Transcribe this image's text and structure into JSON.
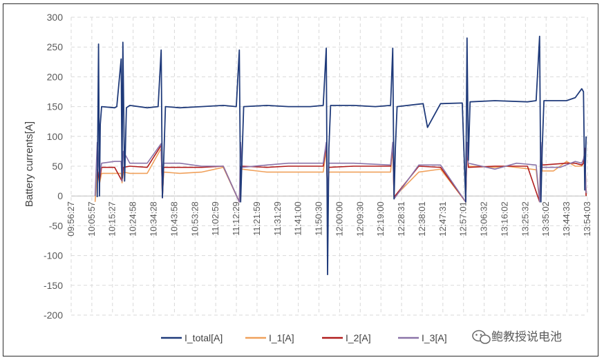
{
  "chart_data": {
    "type": "line",
    "title": "",
    "ylabel": "Battery currents[A]",
    "xlabel": "",
    "ylim": [
      -200,
      300
    ],
    "yticks": [
      300,
      250,
      200,
      150,
      100,
      50,
      0,
      -50,
      -100,
      -150,
      -200
    ],
    "xticks": [
      "09:56:27",
      "10:05:57",
      "10:15:27",
      "10:24:58",
      "10:34:28",
      "10:43:58",
      "10:53:28",
      "11:02:59",
      "11:12:29",
      "11:21:59",
      "11:31:29",
      "11:41:00",
      "11:50:30",
      "12:00:00",
      "12:09:30",
      "12:19:00",
      "12:28:31",
      "12:38:01",
      "12:47:31",
      "12:57:01",
      "13:06:32",
      "13:16:02",
      "13:25:32",
      "13:35:02",
      "13:44:33",
      "13:54:03"
    ],
    "x_unit": "minutes after 09:56:27",
    "xlim": [
      0,
      237.6
    ],
    "grid": true,
    "legend_position": "bottom",
    "series": [
      {
        "name": "I_total[A]",
        "color": "#1f3a7a",
        "x": [
          12,
          12.6,
          13.0,
          13.4,
          14.0,
          20,
          21,
          23,
          23.4,
          23.8,
          24.6,
          25.4,
          27,
          35,
          40,
          41.4,
          42.0,
          42.6,
          43.4,
          50,
          60,
          70,
          76,
          77.4,
          78.0,
          78.6,
          79.4,
          90,
          100,
          110,
          116,
          117.4,
          118.0,
          118.6,
          119.4,
          130,
          140,
          147,
          148.0,
          148.6,
          149.2,
          150,
          162,
          164,
          170,
          180,
          181.6,
          182.2,
          182.8,
          183.6,
          195,
          210,
          214,
          215.6,
          216.2,
          216.8,
          217.6,
          228,
          232,
          235,
          235.8,
          236.4,
          237.0
        ],
        "y": [
          -2,
          255,
          0,
          120,
          150,
          148,
          150,
          230,
          30,
          258,
          25,
          148,
          152,
          148,
          150,
          245,
          -3,
          60,
          150,
          148,
          150,
          152,
          150,
          245,
          -10,
          60,
          150,
          152,
          150,
          150,
          152,
          248,
          -132,
          80,
          152,
          152,
          150,
          152,
          248,
          -5,
          80,
          150,
          155,
          115,
          155,
          156,
          -10,
          265,
          60,
          158,
          160,
          158,
          160,
          268,
          -10,
          80,
          160,
          160,
          165,
          180,
          175,
          10,
          100
        ]
      },
      {
        "name": "I_1[A]",
        "color": "#f0a05a",
        "x": [
          11,
          12,
          13.0,
          14,
          20,
          23,
          23.4,
          24,
          27,
          35,
          41.4,
          42.0,
          42.6,
          50,
          60,
          70,
          77.4,
          78.0,
          78.6,
          90,
          100,
          116,
          117.4,
          118.0,
          118.6,
          130,
          147,
          148.0,
          148.6,
          160,
          170,
          181.6,
          182.2,
          182.8,
          195,
          200,
          214,
          215.6,
          216.2,
          216.8,
          222,
          228,
          232,
          235,
          235.8,
          236.4,
          237.0
        ],
        "y": [
          -10,
          40,
          20,
          38,
          38,
          38,
          22,
          40,
          38,
          38,
          80,
          -2,
          40,
          38,
          40,
          48,
          -10,
          40,
          45,
          40,
          40,
          40,
          80,
          -3,
          40,
          40,
          40,
          80,
          -2,
          40,
          45,
          -10,
          80,
          50,
          48,
          50,
          44,
          -10,
          80,
          42,
          42,
          58,
          50,
          50,
          55,
          80,
          0
        ]
      },
      {
        "name": "I_2[A]",
        "color": "#b01c1c",
        "x": [
          12,
          13.0,
          14,
          20,
          23.4,
          24,
          27,
          35,
          41.4,
          42.0,
          42.6,
          50,
          60,
          70,
          77.4,
          78.0,
          78.6,
          90,
          100,
          116,
          117.4,
          118.0,
          118.6,
          130,
          147,
          148.0,
          148.6,
          160,
          170,
          181.6,
          182.2,
          182.8,
          195,
          210,
          215.6,
          216.2,
          216.8,
          228,
          232,
          235,
          235.8,
          236.4,
          237.0
        ],
        "y": [
          45,
          25,
          48,
          48,
          25,
          48,
          50,
          48,
          85,
          -3,
          48,
          48,
          48,
          50,
          -10,
          48,
          50,
          48,
          50,
          50,
          85,
          -3,
          48,
          50,
          50,
          85,
          -2,
          50,
          48,
          -10,
          85,
          48,
          50,
          50,
          -10,
          85,
          52,
          55,
          55,
          52,
          55,
          80,
          0
        ]
      },
      {
        "name": "I_3[A]",
        "color": "#8a73a8",
        "x": [
          11,
          12,
          13.0,
          14,
          20,
          23,
          23.4,
          24,
          27,
          35,
          41.4,
          42.0,
          42.6,
          50,
          60,
          70,
          77.4,
          78.0,
          78.6,
          90,
          100,
          116,
          117.4,
          118.0,
          118.6,
          130,
          147,
          148.0,
          148.6,
          160,
          170,
          181.6,
          182.2,
          182.8,
          195,
          205,
          214,
          215.6,
          216.2,
          216.8,
          225,
          232,
          235,
          235.8,
          236.4,
          237.0
        ],
        "y": [
          0,
          90,
          30,
          55,
          58,
          58,
          25,
          75,
          55,
          55,
          88,
          -3,
          55,
          55,
          50,
          50,
          -10,
          90,
          48,
          52,
          55,
          55,
          90,
          -3,
          55,
          55,
          52,
          90,
          -5,
          52,
          52,
          -10,
          90,
          55,
          45,
          55,
          52,
          -10,
          90,
          48,
          48,
          58,
          55,
          62,
          70,
          5
        ]
      }
    ]
  },
  "watermark": {
    "text": "鲍教授说电池",
    "icon": "wechat-icon"
  }
}
